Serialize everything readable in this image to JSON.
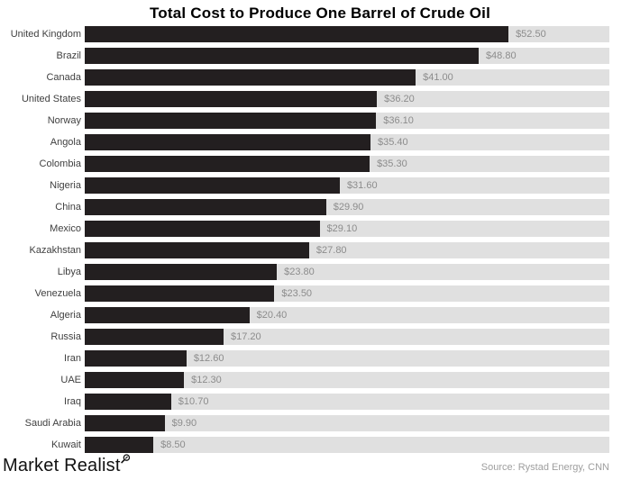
{
  "title": "Total Cost to Produce One Barrel of Crude Oil",
  "chart_data": {
    "type": "bar",
    "orientation": "horizontal",
    "title": "Total Cost to Produce One Barrel of Crude Oil",
    "xlabel": "",
    "ylabel": "",
    "xlim": [
      0,
      65
    ],
    "grid": false,
    "legend": "none",
    "bar_color": "#231f20",
    "track_color": "#e0e0e0",
    "categories": [
      "United Kingdom",
      "Brazil",
      "Canada",
      "United States",
      "Norway",
      "Angola",
      "Colombia",
      "Nigeria",
      "China",
      "Mexico",
      "Kazakhstan",
      "Libya",
      "Venezuela",
      "Algeria",
      "Russia",
      "Iran",
      "UAE",
      "Iraq",
      "Saudi Arabia",
      "Kuwait"
    ],
    "values": [
      52.5,
      48.8,
      41.0,
      36.2,
      36.1,
      35.4,
      35.3,
      31.6,
      29.9,
      29.1,
      27.8,
      23.8,
      23.5,
      20.4,
      17.2,
      12.6,
      12.3,
      10.7,
      9.9,
      8.5
    ],
    "value_labels": [
      "$52.50",
      "$48.80",
      "$41.00",
      "$36.20",
      "$36.10",
      "$35.40",
      "$35.30",
      "$31.60",
      "$29.90",
      "$29.10",
      "$27.80",
      "$23.80",
      "$23.50",
      "$20.40",
      "$17.20",
      "$12.60",
      "$12.30",
      "$10.70",
      "$9.90",
      "$8.50"
    ]
  },
  "footer": {
    "brand": "Market Realist",
    "brand_icon": "magnifier-icon",
    "source": "Source: Rystad Energy, CNN"
  }
}
